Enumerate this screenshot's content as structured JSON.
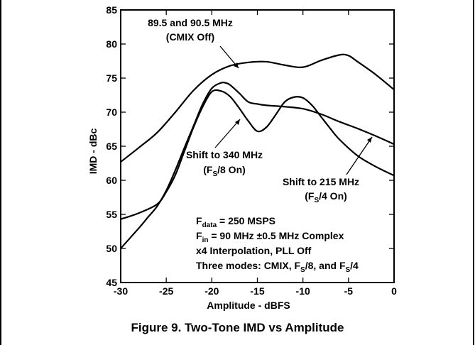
{
  "caption": "Figure 9. Two-Tone IMD vs Amplitude",
  "chart_data": {
    "type": "line",
    "xlabel": "Amplitude - dBFS",
    "ylabel": "IMD - dBc",
    "xlim": [
      -30,
      0
    ],
    "ylim": [
      45,
      85
    ],
    "xticks": [
      -30,
      -25,
      -20,
      -15,
      -10,
      -5,
      0
    ],
    "yticks": [
      45,
      50,
      55,
      60,
      65,
      70,
      75,
      80,
      85
    ],
    "grid": false,
    "legend": "none",
    "series": [
      {
        "name": "89.5 and 90.5 MHz (CMIX Off)",
        "x": [
          -30,
          -28,
          -26,
          -24,
          -22,
          -20,
          -18,
          -16,
          -14,
          -12,
          -10,
          -8,
          -6,
          -5,
          -4,
          -2,
          0
        ],
        "y": [
          62.7,
          64.8,
          67.0,
          70.0,
          73.2,
          75.5,
          76.8,
          77.3,
          77.4,
          76.9,
          76.6,
          77.6,
          78.4,
          78.3,
          77.4,
          75.5,
          73.3
        ]
      },
      {
        "name": "Shift to 340 MHz (FS/8 On)",
        "x": [
          -30,
          -28,
          -26,
          -25,
          -24,
          -23,
          -22,
          -21,
          -20,
          -19,
          -18,
          -17,
          -16,
          -15,
          -14,
          -13,
          -12,
          -11,
          -10,
          -9,
          -8,
          -7,
          -6,
          -4,
          -2,
          0
        ],
        "y": [
          54.3,
          55.2,
          56.5,
          58.3,
          60.8,
          64.3,
          67.8,
          70.8,
          73.0,
          73.1,
          72.3,
          70.6,
          68.7,
          67.2,
          67.8,
          69.6,
          71.5,
          72.2,
          72.1,
          71.0,
          69.3,
          67.6,
          66.0,
          63.6,
          62.0,
          60.7
        ]
      },
      {
        "name": "Shift to 215 MHz (FS/4 On)",
        "x": [
          -30,
          -28,
          -27,
          -26,
          -25,
          -24,
          -23,
          -22,
          -21,
          -20,
          -19,
          -18.5,
          -18,
          -17,
          -16,
          -15,
          -14,
          -12,
          -10,
          -8,
          -6,
          -4,
          -2,
          0
        ],
        "y": [
          50.0,
          53.0,
          54.6,
          56.2,
          58.5,
          61.5,
          64.8,
          68.0,
          71.2,
          73.5,
          74.3,
          74.3,
          74.0,
          72.8,
          71.5,
          71.2,
          71.0,
          70.8,
          70.5,
          69.7,
          68.6,
          67.6,
          66.5,
          65.3
        ]
      }
    ],
    "annotations": {
      "cmix_line1": "89.5 and 90.5 MHz",
      "cmix_line2": "(CMIX Off)",
      "s340_line1": "Shift to 340 MHz",
      "s340_line2_pre": "(F",
      "s340_sub": "S",
      "s340_line2_post": "/8 On)",
      "s215_line1": "Shift to 215 MHz",
      "s215_line2_pre": "(F",
      "s215_sub": "S",
      "s215_line2_post": "/4 On)",
      "cond1_pre": "F",
      "cond1_sub": "data",
      "cond1_post": " = 250 MSPS",
      "cond2_pre": "F",
      "cond2_sub": "in",
      "cond2_post": " = 90 MHz ±0.5 MHz Complex",
      "cond3": "x4 Interpolation, PLL Off",
      "cond4_pre": "Three modes: CMIX, F",
      "cond4_sub1": "S",
      "cond4_mid": "/8, and F",
      "cond4_sub2": "S",
      "cond4_post": "/4"
    }
  }
}
